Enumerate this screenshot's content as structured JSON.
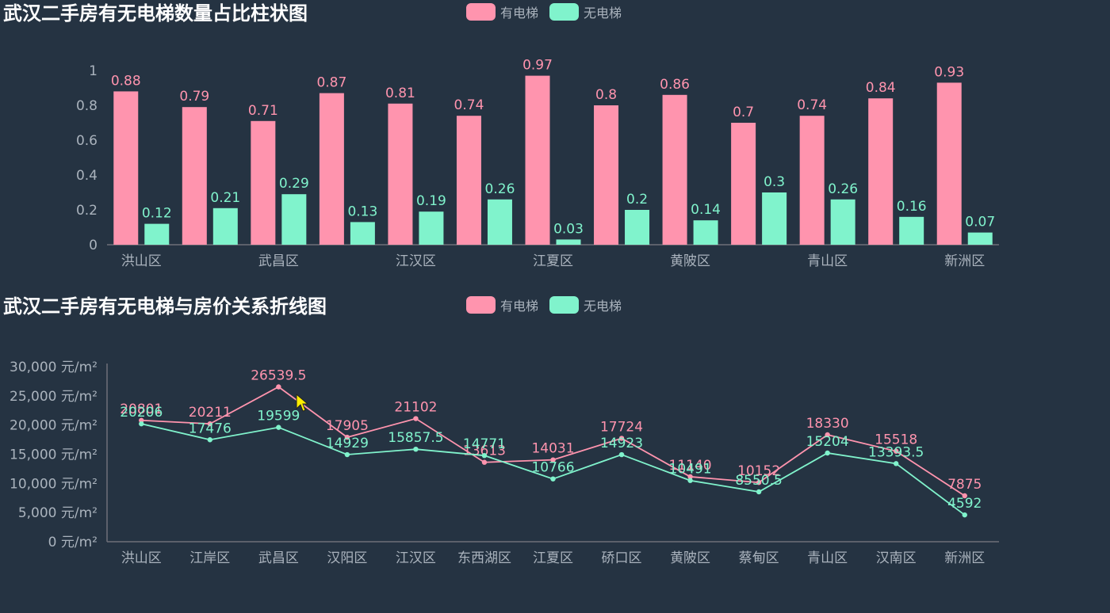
{
  "colors": {
    "with": "#ff94ae",
    "without": "#80f3cc",
    "axis": "#6e7079",
    "text": "#aab3bd"
  },
  "legend": {
    "with": "有电梯",
    "without": "无电梯"
  },
  "chart_data": [
    {
      "type": "bar",
      "title": "武汉二手房有无电梯数量占比柱状图",
      "categories": [
        "洪山区",
        "江岸区",
        "武昌区",
        "汉阳区",
        "江汉区",
        "东西湖区",
        "江夏区",
        "硚口区",
        "黄陂区",
        "蔡甸区",
        "青山区",
        "汉南区",
        "新洲区"
      ],
      "visible_x_labels": [
        "洪山区",
        "",
        "武昌区",
        "",
        "江汉区",
        "",
        "江夏区",
        "",
        "黄陂区",
        "",
        "青山区",
        "",
        "新洲区"
      ],
      "series": [
        {
          "name": "有电梯",
          "values": [
            0.88,
            0.79,
            0.71,
            0.87,
            0.81,
            0.74,
            0.97,
            0.8,
            0.86,
            0.7,
            0.74,
            0.84,
            0.93
          ]
        },
        {
          "name": "无电梯",
          "values": [
            0.12,
            0.21,
            0.29,
            0.13,
            0.19,
            0.26,
            0.03,
            0.2,
            0.14,
            0.3,
            0.26,
            0.16,
            0.07
          ]
        }
      ],
      "ylim": [
        0,
        1
      ],
      "yticks": [
        "0",
        "0.2",
        "0.4",
        "0.6",
        "0.8",
        "1"
      ],
      "legend_position": "top-center"
    },
    {
      "type": "line",
      "title": "武汉二手房有无电梯与房价关系折线图",
      "categories": [
        "洪山区",
        "江岸区",
        "武昌区",
        "汉阳区",
        "江汉区",
        "东西湖区",
        "江夏区",
        "硚口区",
        "黄陂区",
        "蔡甸区",
        "青山区",
        "汉南区",
        "新洲区"
      ],
      "series": [
        {
          "name": "有电梯",
          "values": [
            20801,
            20211,
            26539.5,
            17905,
            21102,
            13613,
            14031,
            17724,
            11140,
            10152,
            18330,
            15518,
            7875
          ]
        },
        {
          "name": "无电梯",
          "values": [
            20206,
            17476,
            19599,
            14929,
            15857.5,
            14771,
            10766,
            14923,
            10491,
            8550.5,
            15204,
            13393.5,
            4592
          ]
        }
      ],
      "ylim": [
        0,
        30000
      ],
      "yticks": [
        "0 元/m²",
        "5,000 元/m²",
        "10,000 元/m²",
        "15,000 元/m²",
        "20,000 元/m²",
        "25,000 元/m²",
        "30,000 元/m²"
      ],
      "legend_position": "top-center"
    }
  ]
}
